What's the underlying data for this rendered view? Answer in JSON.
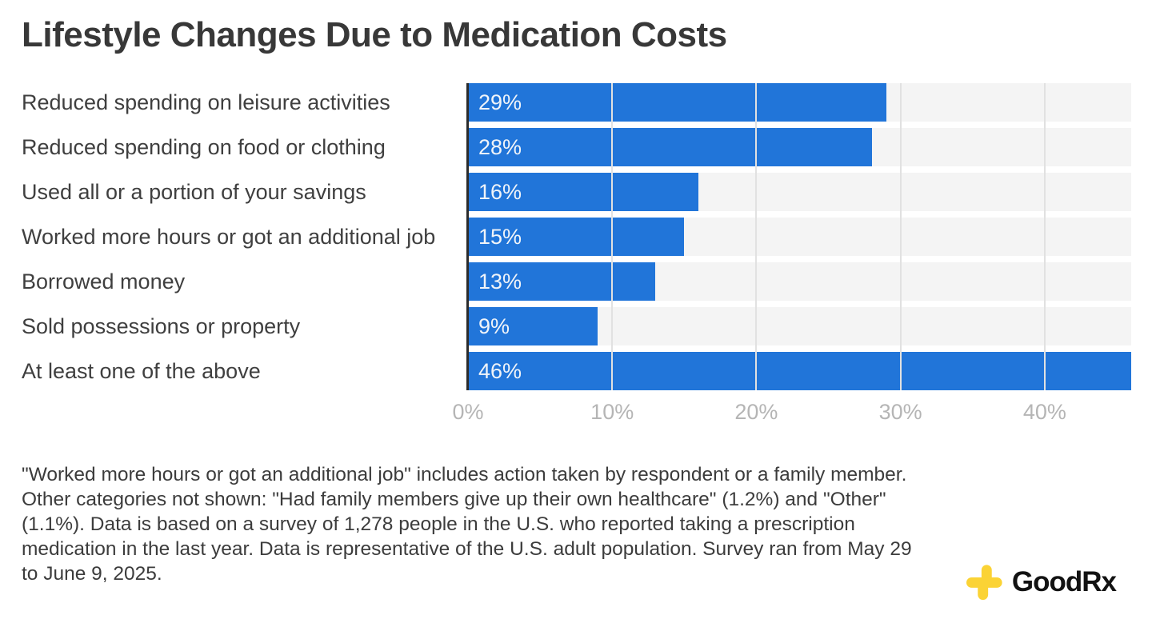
{
  "chart_data": {
    "type": "bar",
    "orientation": "horizontal",
    "title": "Lifestyle Changes Due to Medication Costs",
    "categories": [
      "Reduced spending on leisure activities",
      "Reduced spending on food or clothing",
      "Used all or a portion of your savings",
      "Worked more hours or got an additional job",
      "Borrowed money",
      "Sold possessions or property",
      "At least one of the above"
    ],
    "values": [
      29,
      28,
      16,
      15,
      13,
      9,
      46
    ],
    "value_labels": [
      "29%",
      "28%",
      "16%",
      "15%",
      "13%",
      "9%",
      "46%"
    ],
    "xlim": [
      0,
      46
    ],
    "x_ticks": [
      {
        "value": 0,
        "label": "0%"
      },
      {
        "value": 10,
        "label": "10%"
      },
      {
        "value": 20,
        "label": "20%"
      },
      {
        "value": 30,
        "label": "30%"
      },
      {
        "value": 40,
        "label": "40%"
      }
    ],
    "grid": true,
    "legend": false,
    "colors": {
      "bar": "#2175d9",
      "bar_value_label": "#f0f4f9",
      "track": "#f4f4f4",
      "gridline": "#e1e1e1",
      "axis_line": "#2b2b2b",
      "tick_label": "#b5b5b5",
      "title": "#383838",
      "category_label": "#3f3f3f"
    }
  },
  "footnote": {
    "text": "\"Worked more hours or got an additional job\" includes action taken by respondent or a family member. Other categories not shown: \"Had family members give up their own healthcare\" (1.2%) and \"Other\" (1.1%). Data is based on a survey of 1,278 people in the U.S. who reported taking a prescription medication in the last year. Data is representative of the U.S. adult population. Survey ran from May 29 to June 9, 2025."
  },
  "logo": {
    "text": "GoodRx",
    "icon": "goodrx-cross-icon",
    "icon_color": "#fbd335",
    "text_color": "#121212"
  }
}
